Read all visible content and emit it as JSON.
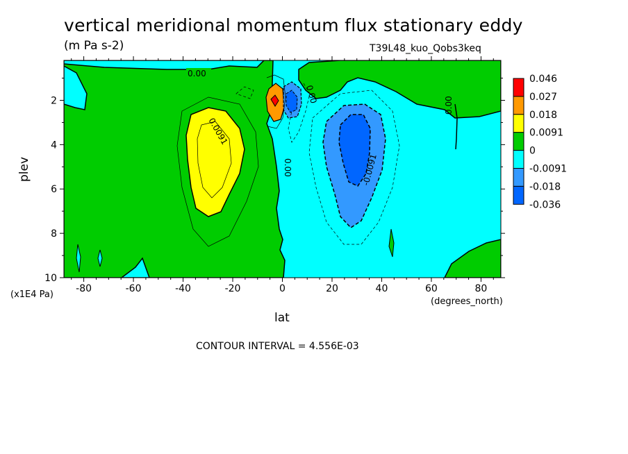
{
  "header": {
    "title": "vertical meridional momentum flux stationary eddy",
    "units": "(m Pa s-2)",
    "run_id": "T39L48_kuo_Qobs3keq"
  },
  "footer": {
    "contour_interval": "CONTOUR INTERVAL = 4.556E-03"
  },
  "chart_data": {
    "type": "heatmap",
    "subtype": "filled contour",
    "xlabel": "lat",
    "xunits": "(degrees_north)",
    "ylabel": "plev",
    "yunits": "(x1E4 Pa)",
    "xlim": [
      -88,
      88
    ],
    "ylim": [
      10,
      0.2
    ],
    "y_inverted": true,
    "x_ticks": [
      -80,
      -60,
      -40,
      -20,
      0,
      20,
      40,
      60,
      80
    ],
    "x_tick_labels": [
      "-80",
      "-60",
      "-40",
      "-20",
      "0",
      "20",
      "40",
      "60",
      "80"
    ],
    "y_ticks": [
      2,
      4,
      6,
      8,
      10
    ],
    "y_tick_labels": [
      "2",
      "4",
      "6",
      "8",
      "10"
    ],
    "contour_interval": 0.004556,
    "levels": [
      {
        "label": "0.046",
        "color": "#ff0000"
      },
      {
        "label": "0.027",
        "color": "#ff9900"
      },
      {
        "label": "0.018",
        "color": "#ffff00"
      },
      {
        "label": "0.0091",
        "color": "#00cc00"
      },
      {
        "label": "0",
        "color": "#00ffff"
      },
      {
        "label": "-0.0091",
        "color": "#3399ff"
      },
      {
        "label": "-0.018",
        "color": "#0066ff"
      },
      {
        "label": "-0.036",
        "color": ""
      }
    ],
    "contour_labels": [
      "0.00",
      "0.00",
      "0.0091",
      "0.00",
      "-0.0091",
      "0.00",
      "0.00"
    ],
    "features": [
      {
        "kind": "positive lobe",
        "center_lat": -32,
        "center_plev": 4.2,
        "value": 0.0137
      },
      {
        "kind": "negative lobe",
        "center_lat": 28,
        "center_plev": 4.0,
        "value": -0.0228
      },
      {
        "kind": "positive peak",
        "center_lat": -3,
        "center_plev": 2.0,
        "value": 0.046
      },
      {
        "kind": "negative peak",
        "center_lat": 3,
        "center_plev": 2.0,
        "value": -0.036
      }
    ]
  }
}
